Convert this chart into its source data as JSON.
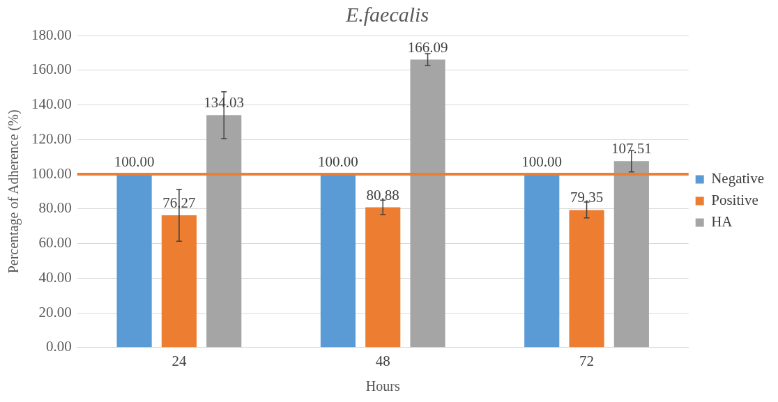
{
  "chart_data": {
    "type": "bar",
    "title": "E.faecalis",
    "xlabel": "Hours",
    "ylabel": "Percentage of Adherence (%)",
    "categories": [
      "24",
      "48",
      "72"
    ],
    "series": [
      {
        "name": "Negative",
        "color": "#5b9bd5",
        "values": [
          100.0,
          100.0,
          100.0
        ],
        "value_labels": [
          "100.00",
          "100.00",
          "100.00"
        ]
      },
      {
        "name": "Positive",
        "color": "#ed7d31",
        "values": [
          76.27,
          80.88,
          79.35
        ],
        "value_labels": [
          "76.27",
          "80.88",
          "79.35"
        ],
        "errors": [
          15,
          4.2,
          4.6
        ]
      },
      {
        "name": "HA",
        "color": "#a5a5a5",
        "values": [
          134.03,
          166.09,
          107.51
        ],
        "value_labels": [
          "134.03",
          "166.09",
          "107.51"
        ],
        "errors": [
          13.5,
          3.5,
          6.2
        ]
      }
    ],
    "ylim": [
      0,
      180
    ],
    "yticks": [
      {
        "value": 0,
        "label": "0.00"
      },
      {
        "value": 20,
        "label": "20.00"
      },
      {
        "value": 40,
        "label": "40.00"
      },
      {
        "value": 60,
        "label": "60.00"
      },
      {
        "value": 80,
        "label": "80.00"
      },
      {
        "value": 100,
        "label": "100.00"
      },
      {
        "value": 120,
        "label": "120.00"
      },
      {
        "value": 140,
        "label": "140.00"
      },
      {
        "value": 160,
        "label": "160.00"
      },
      {
        "value": 180,
        "label": "180.00"
      }
    ],
    "ref_lines": [
      {
        "axis": "y",
        "value": 100,
        "color": "#ed7d31"
      }
    ],
    "grid": "y",
    "legend": "right"
  }
}
